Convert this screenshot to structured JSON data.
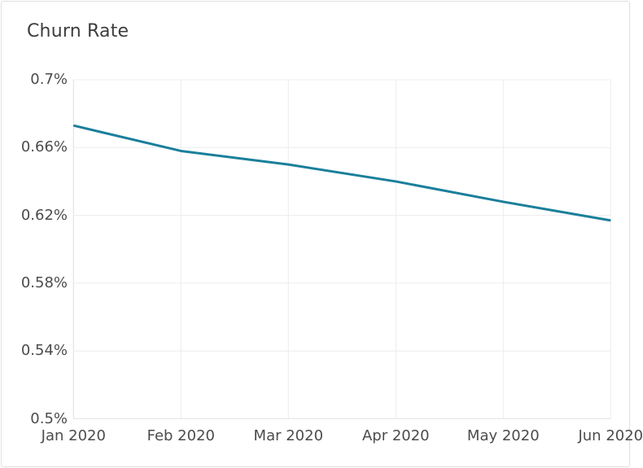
{
  "card": {
    "title": "Churn Rate"
  },
  "chart_data": {
    "type": "line",
    "title": "Churn Rate",
    "categories": [
      "Jan 2020",
      "Feb 2020",
      "Mar 2020",
      "Apr 2020",
      "May 2020",
      "Jun 2020"
    ],
    "series": [
      {
        "name": "Churn Rate",
        "color": "#1a7f9b",
        "values": [
          0.673,
          0.658,
          0.65,
          0.64,
          0.628,
          0.617
        ]
      }
    ],
    "unit": "%",
    "ylim": [
      0.5,
      0.7
    ],
    "y_ticks": [
      {
        "value": 0.7,
        "label": "0.7%"
      },
      {
        "value": 0.66,
        "label": "0.66%"
      },
      {
        "value": 0.62,
        "label": "0.62%"
      },
      {
        "value": 0.58,
        "label": "0.58%"
      },
      {
        "value": 0.54,
        "label": "0.54%"
      },
      {
        "value": 0.5,
        "label": "0.5%"
      }
    ],
    "grid": true,
    "legend": "none",
    "xlabel": "",
    "ylabel": ""
  }
}
